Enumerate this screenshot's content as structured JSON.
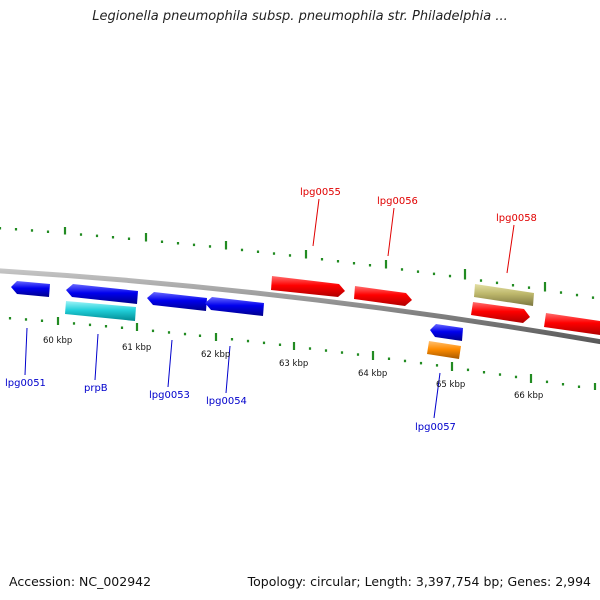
{
  "header": {
    "title": "Legionella pneumophila subsp. pneumophila str. Philadelphia ..."
  },
  "footer": {
    "accession": "Accession: NC_002942",
    "summary": "Topology: circular; Length: 3,397,754 bp; Genes: 2,994"
  },
  "colors": {
    "forward_gene": "#ff0000",
    "reverse_gene": "#0000ee",
    "rna_gene": "#00c8d2",
    "orange_gene": "#ff8c00",
    "khaki_gene": "#bdb76b",
    "backbone": "#8c8c8c",
    "tick": "#228b22"
  },
  "axis": {
    "ticks": [
      {
        "label": "60 kbp"
      },
      {
        "label": "61 kbp"
      },
      {
        "label": "62 kbp"
      },
      {
        "label": "63 kbp"
      },
      {
        "label": "64 kbp"
      },
      {
        "label": "65 kbp"
      },
      {
        "label": "66 kbp"
      }
    ]
  },
  "genes": {
    "top": [
      {
        "name": "lpg0055"
      },
      {
        "name": "lpg0056"
      },
      {
        "name": "lpg0058"
      }
    ],
    "bottom": [
      {
        "name": "lpg0051"
      },
      {
        "name": "prpB"
      },
      {
        "name": "lpg0053"
      },
      {
        "name": "lpg0054"
      },
      {
        "name": "lpg0057"
      }
    ]
  }
}
